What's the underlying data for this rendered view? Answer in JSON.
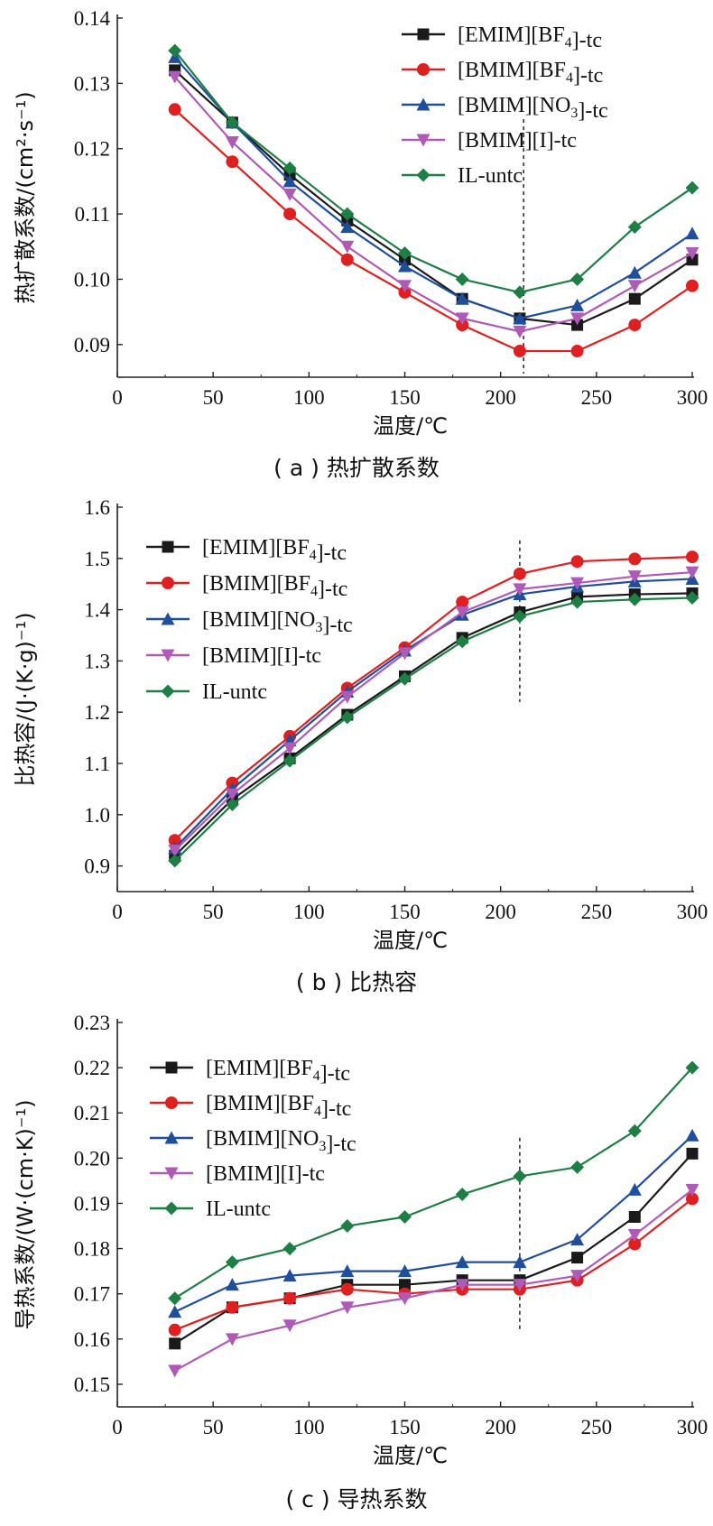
{
  "chart_data": [
    {
      "type": "line",
      "caption": "( a ) 热扩散系数",
      "xlabel": "温度/℃",
      "ylabel": "热扩散系数/(cm²·s⁻¹)",
      "xlim": [
        0,
        300
      ],
      "ylim": [
        0.085,
        0.14
      ],
      "x_ticks": [
        0,
        50,
        100,
        150,
        200,
        250,
        300
      ],
      "y_ticks": [
        0.09,
        0.1,
        0.11,
        0.12,
        0.13,
        0.14
      ],
      "y_tick_labels": [
        "0.09",
        "0.10",
        "0.11",
        "0.12",
        "0.13",
        "0.14"
      ],
      "legend_position": "top-right",
      "dashed_line_x": 212,
      "x": [
        30,
        60,
        90,
        120,
        150,
        180,
        210,
        240,
        270,
        300
      ],
      "series": [
        {
          "name": "[EMIM][BF4]-tc",
          "values": [
            0.132,
            0.124,
            0.116,
            0.109,
            0.103,
            0.097,
            0.094,
            0.093,
            0.097,
            0.103
          ]
        },
        {
          "name": "[BMIM][BF4]-tc",
          "values": [
            0.126,
            0.118,
            0.11,
            0.103,
            0.098,
            0.093,
            0.089,
            0.089,
            0.093,
            0.099
          ]
        },
        {
          "name": "[BMIM][NO3]-tc",
          "values": [
            0.134,
            0.124,
            0.115,
            0.108,
            0.102,
            0.097,
            0.094,
            0.096,
            0.101,
            0.107
          ]
        },
        {
          "name": "[BMIM][I]-tc",
          "values": [
            0.131,
            0.121,
            0.113,
            0.105,
            0.099,
            0.094,
            0.092,
            0.094,
            0.099,
            0.104
          ]
        },
        {
          "name": "IL-untc",
          "values": [
            0.135,
            0.124,
            0.117,
            0.11,
            0.104,
            0.1,
            0.098,
            0.1,
            0.108,
            0.114
          ]
        }
      ]
    },
    {
      "type": "line",
      "caption": "( b ) 比热容",
      "xlabel": "温度/℃",
      "ylabel": "比热容/(J·(K·g)⁻¹)",
      "xlim": [
        0,
        300
      ],
      "ylim": [
        0.85,
        1.6
      ],
      "x_ticks": [
        0,
        50,
        100,
        150,
        200,
        250,
        300
      ],
      "y_ticks": [
        0.9,
        1.0,
        1.1,
        1.2,
        1.3,
        1.4,
        1.5,
        1.6
      ],
      "y_tick_labels": [
        "0.9",
        "1.0",
        "1.1",
        "1.2",
        "1.3",
        "1.4",
        "1.5",
        "1.6"
      ],
      "legend_position": "top-left",
      "dashed_line_x": 210,
      "x": [
        30,
        60,
        90,
        120,
        150,
        180,
        210,
        240,
        270,
        300
      ],
      "series": [
        {
          "name": "[EMIM][BF4]-tc",
          "values": [
            0.92,
            1.03,
            1.11,
            1.195,
            1.27,
            1.345,
            1.395,
            1.425,
            1.43,
            1.432
          ]
        },
        {
          "name": "[BMIM][BF4]-tc",
          "values": [
            0.95,
            1.062,
            1.153,
            1.247,
            1.326,
            1.415,
            1.47,
            1.494,
            1.499,
            1.503
          ]
        },
        {
          "name": "[BMIM][NO3]-tc",
          "values": [
            0.935,
            1.05,
            1.145,
            1.24,
            1.32,
            1.39,
            1.43,
            1.445,
            1.455,
            1.46
          ]
        },
        {
          "name": "[BMIM][I]-tc",
          "values": [
            0.93,
            1.04,
            1.13,
            1.23,
            1.315,
            1.395,
            1.44,
            1.452,
            1.465,
            1.473
          ]
        },
        {
          "name": "IL-untc",
          "values": [
            0.91,
            1.02,
            1.105,
            1.19,
            1.265,
            1.338,
            1.387,
            1.415,
            1.42,
            1.423
          ]
        }
      ]
    },
    {
      "type": "line",
      "caption": "( c ) 导热系数",
      "xlabel": "温度/℃",
      "ylabel": "导热系数/(W·(cm·K)⁻¹)",
      "xlim": [
        0,
        300
      ],
      "ylim": [
        0.145,
        0.23
      ],
      "x_ticks": [
        0,
        50,
        100,
        150,
        200,
        250,
        300
      ],
      "y_ticks": [
        0.15,
        0.16,
        0.17,
        0.18,
        0.19,
        0.2,
        0.21,
        0.22,
        0.23
      ],
      "y_tick_labels": [
        "0.15",
        "0.16",
        "0.17",
        "0.18",
        "0.19",
        "0.20",
        "0.21",
        "0.22",
        "0.23"
      ],
      "legend_position": "top-left",
      "dashed_line_x": 210,
      "x": [
        30,
        60,
        90,
        120,
        150,
        180,
        210,
        240,
        270,
        300
      ],
      "series": [
        {
          "name": "[EMIM][BF4]-tc",
          "values": [
            0.159,
            0.167,
            0.169,
            0.172,
            0.172,
            0.173,
            0.173,
            0.178,
            0.187,
            0.201
          ]
        },
        {
          "name": "[BMIM][BF4]-tc",
          "values": [
            0.162,
            0.167,
            0.169,
            0.171,
            0.17,
            0.171,
            0.171,
            0.173,
            0.181,
            0.191
          ]
        },
        {
          "name": "[BMIM][NO3]-tc",
          "values": [
            0.166,
            0.172,
            0.174,
            0.175,
            0.175,
            0.177,
            0.177,
            0.182,
            0.193,
            0.205
          ]
        },
        {
          "name": "[BMIM][I]-tc",
          "values": [
            0.153,
            0.16,
            0.163,
            0.167,
            0.169,
            0.172,
            0.172,
            0.174,
            0.183,
            0.193
          ]
        },
        {
          "name": "IL-untc",
          "values": [
            0.169,
            0.177,
            0.18,
            0.185,
            0.187,
            0.192,
            0.196,
            0.198,
            0.206,
            0.22
          ]
        }
      ]
    }
  ],
  "style": {
    "series_colors": [
      "#1a1a1a",
      "#e02020",
      "#1f4e9c",
      "#b05ab8",
      "#1e7f45"
    ],
    "series_markers": [
      "square",
      "circle",
      "triangle-up",
      "triangle-down",
      "diamond"
    ]
  }
}
